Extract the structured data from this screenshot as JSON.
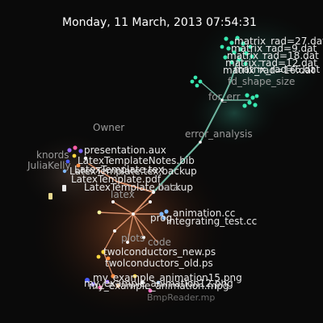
{
  "header": {
    "datetime": "Monday, 11 March, 2013 07:54:31"
  },
  "colors": {
    "background": "#0a0a0a",
    "edge_teal": "#6fb5a0",
    "edge_orange": "#d9906a",
    "node_teal": "#38e8b0",
    "node_white": "#f4f4f4",
    "glow_warm": "#b45e2c"
  },
  "labels": {
    "matrix_1": "matrix_rad=27.dat",
    "matrix_2": "matrix_rad=9.dat",
    "matrix_3": "matrix_rad=18.dat",
    "matrix_4": "matrix_rad=12.dat",
    "matrix_5": "matrix_rad=16.dat",
    "matrix_6": "matrix_rad=6.dat",
    "fd_shape_size": "fd_shape_size",
    "for_err": "for_err",
    "error_analysis": "error_analysis",
    "owner": "Owner",
    "knords": "knords",
    "julia_kelly": "JuliaKelly",
    "presentation_aux": "presentation.aux",
    "latex_notes_bib": "LatexTemplateNotes.bib",
    "template_tex": "LatexTemplate.tex",
    "template_backup": "LatexTemplate.tex.backup",
    "template_pdf": "LatexTemplate.pdf",
    "template_backup_2": "LatexTemplate.backup",
    "latex": "latex",
    "data": "data",
    "animation_cc": "animation.cc",
    "integrating_test": "integrating_test.cc",
    "program": "prog",
    "plots": "plots",
    "code": "code",
    "tw_conductors_new": "twolconductors_new.ps",
    "tw_conductors_old": "twolconductors_old.ps",
    "amp_5_png": "my_example_animation15.png",
    "amp_mpg": "my_example_animation.mpg",
    "amp_2": "my_example_animation12.png",
    "bmp_reader": "BmpReader.mp"
  }
}
